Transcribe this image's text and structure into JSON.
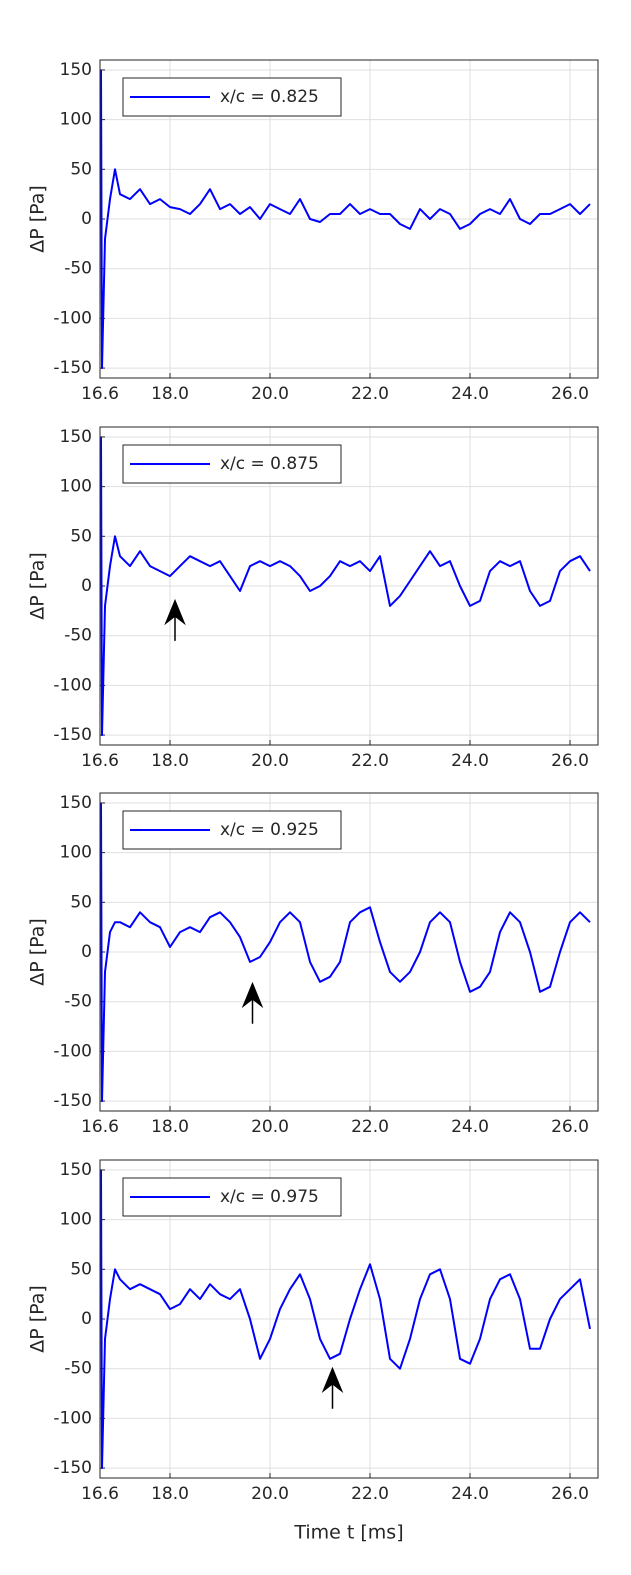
{
  "chart_data": [
    {
      "type": "line",
      "y_label": "ΔP [Pa]",
      "xlim": [
        16.6,
        26.56
      ],
      "ylim": [
        -160,
        160
      ],
      "grid": true,
      "legend": "upper left",
      "xticks": [
        16.6,
        {
          "value": 18,
          "label": "18.0"
        },
        {
          "value": 20,
          "label": "20.0"
        },
        {
          "value": 22,
          "label": "22.0"
        },
        {
          "value": 24,
          "label": "24.0"
        },
        {
          "value": 26,
          "label": "26.0"
        }
      ],
      "yticks": [
        -150,
        -100,
        -50,
        0,
        50,
        100,
        150
      ],
      "x": [
        16.62,
        16.64,
        16.7,
        16.8,
        16.9,
        17,
        17.2,
        17.4,
        17.6,
        17.8,
        18,
        18.2,
        18.4,
        18.6,
        18.8,
        19,
        19.2,
        19.4,
        19.6,
        19.8,
        20,
        20.2,
        20.4,
        20.6,
        20.8,
        21,
        21.2,
        21.4,
        21.6,
        21.8,
        22,
        22.2,
        22.4,
        22.6,
        22.8,
        23,
        23.2,
        23.4,
        23.6,
        23.8,
        24,
        24.2,
        24.4,
        24.6,
        24.8,
        25,
        25.2,
        25.4,
        25.6,
        25.8,
        26,
        26.2,
        26.4
      ],
      "series": [
        {
          "name": "x/c = 0.825",
          "color": "#0000ff",
          "values": [
            150,
            -150,
            -20,
            20,
            50,
            25,
            20,
            30,
            15,
            20,
            12,
            10,
            5,
            15,
            30,
            10,
            15,
            5,
            12,
            0,
            15,
            10,
            5,
            20,
            0,
            -3,
            5,
            5,
            15,
            5,
            10,
            5,
            5,
            -5,
            -10,
            10,
            0,
            10,
            5,
            -10,
            -5,
            5,
            10,
            5,
            20,
            0,
            -5,
            5,
            5,
            10,
            15,
            5,
            15
          ]
        }
      ]
    },
    {
      "type": "line",
      "y_label": "ΔP [Pa]",
      "xlim": [
        16.6,
        26.56
      ],
      "ylim": [
        -160,
        160
      ],
      "grid": true,
      "legend": "upper left",
      "xticks": [
        16.6,
        {
          "value": 18,
          "label": "18.0"
        },
        {
          "value": 20,
          "label": "20.0"
        },
        {
          "value": 22,
          "label": "22.0"
        },
        {
          "value": 24,
          "label": "24.0"
        },
        {
          "value": 26,
          "label": "26.0"
        }
      ],
      "yticks": [
        -150,
        -100,
        -50,
        0,
        50,
        100,
        150
      ],
      "x": [
        16.62,
        16.64,
        16.7,
        16.8,
        16.9,
        17,
        17.2,
        17.4,
        17.6,
        17.8,
        18,
        18.2,
        18.4,
        18.6,
        18.8,
        19,
        19.2,
        19.4,
        19.6,
        19.8,
        20,
        20.2,
        20.4,
        20.6,
        20.8,
        21,
        21.2,
        21.4,
        21.6,
        21.8,
        22,
        22.2,
        22.4,
        22.6,
        22.8,
        23,
        23.2,
        23.4,
        23.6,
        23.8,
        24,
        24.2,
        24.4,
        24.6,
        24.8,
        25,
        25.2,
        25.4,
        25.6,
        25.8,
        26,
        26.2,
        26.4
      ],
      "series": [
        {
          "name": "x/c = 0.875",
          "color": "#0000ff",
          "values": [
            150,
            -150,
            -20,
            20,
            50,
            30,
            20,
            35,
            20,
            15,
            10,
            20,
            30,
            25,
            20,
            25,
            10,
            -5,
            20,
            25,
            20,
            25,
            20,
            10,
            -5,
            0,
            10,
            25,
            20,
            25,
            15,
            30,
            -20,
            -10,
            5,
            20,
            35,
            20,
            25,
            0,
            -20,
            -15,
            15,
            25,
            20,
            25,
            -5,
            -20,
            -15,
            15,
            25,
            30,
            15
          ]
        }
      ],
      "annotations": [
        {
          "x": 18.1,
          "y": -15
        }
      ]
    },
    {
      "type": "line",
      "y_label": "ΔP [Pa]",
      "xlim": [
        16.6,
        26.56
      ],
      "ylim": [
        -160,
        160
      ],
      "grid": true,
      "legend": "upper left",
      "xticks": [
        16.6,
        {
          "value": 18,
          "label": "18.0"
        },
        {
          "value": 20,
          "label": "20.0"
        },
        {
          "value": 22,
          "label": "22.0"
        },
        {
          "value": 24,
          "label": "24.0"
        },
        {
          "value": 26,
          "label": "26.0"
        }
      ],
      "yticks": [
        -150,
        -100,
        -50,
        0,
        50,
        100,
        150
      ],
      "x": [
        16.62,
        16.64,
        16.7,
        16.8,
        16.9,
        17,
        17.2,
        17.4,
        17.6,
        17.8,
        18,
        18.2,
        18.4,
        18.6,
        18.8,
        19,
        19.2,
        19.4,
        19.6,
        19.8,
        20,
        20.2,
        20.4,
        20.6,
        20.8,
        21,
        21.2,
        21.4,
        21.6,
        21.8,
        22,
        22.2,
        22.4,
        22.6,
        22.8,
        23,
        23.2,
        23.4,
        23.6,
        23.8,
        24,
        24.2,
        24.4,
        24.6,
        24.8,
        25,
        25.2,
        25.4,
        25.6,
        25.8,
        26,
        26.2,
        26.4
      ],
      "series": [
        {
          "name": "x/c = 0.925",
          "color": "#0000ff",
          "values": [
            150,
            -150,
            -20,
            20,
            30,
            30,
            25,
            40,
            30,
            25,
            5,
            20,
            25,
            20,
            35,
            40,
            30,
            15,
            -10,
            -5,
            10,
            30,
            40,
            30,
            -10,
            -30,
            -25,
            -10,
            30,
            40,
            45,
            10,
            -20,
            -30,
            -20,
            0,
            30,
            40,
            30,
            -10,
            -40,
            -35,
            -20,
            20,
            40,
            30,
            0,
            -40,
            -35,
            0,
            30,
            40,
            30
          ]
        }
      ],
      "annotations": [
        {
          "x": 19.65,
          "y": -32
        }
      ]
    },
    {
      "type": "line",
      "y_label": "ΔP [Pa]",
      "x_label": "Time t [ms]",
      "xlim": [
        16.6,
        26.56
      ],
      "ylim": [
        -160,
        160
      ],
      "grid": true,
      "legend": "upper left",
      "xticks": [
        16.6,
        {
          "value": 18,
          "label": "18.0"
        },
        {
          "value": 20,
          "label": "20.0"
        },
        {
          "value": 22,
          "label": "22.0"
        },
        {
          "value": 24,
          "label": "24.0"
        },
        {
          "value": 26,
          "label": "26.0"
        }
      ],
      "yticks": [
        -150,
        -100,
        -50,
        0,
        50,
        100,
        150
      ],
      "x": [
        16.62,
        16.64,
        16.7,
        16.8,
        16.9,
        17,
        17.2,
        17.4,
        17.6,
        17.8,
        18,
        18.2,
        18.4,
        18.6,
        18.8,
        19,
        19.2,
        19.4,
        19.6,
        19.8,
        20,
        20.2,
        20.4,
        20.6,
        20.8,
        21,
        21.2,
        21.4,
        21.6,
        21.8,
        22,
        22.2,
        22.4,
        22.6,
        22.8,
        23,
        23.2,
        23.4,
        23.6,
        23.8,
        24,
        24.2,
        24.4,
        24.6,
        24.8,
        25,
        25.2,
        25.4,
        25.6,
        25.8,
        26,
        26.2,
        26.4
      ],
      "series": [
        {
          "name": "x/c = 0.975",
          "color": "#0000ff",
          "values": [
            150,
            -150,
            -20,
            20,
            50,
            40,
            30,
            35,
            30,
            25,
            10,
            15,
            30,
            20,
            35,
            25,
            20,
            30,
            0,
            -40,
            -20,
            10,
            30,
            45,
            20,
            -20,
            -40,
            -35,
            0,
            30,
            55,
            20,
            -40,
            -50,
            -20,
            20,
            45,
            50,
            20,
            -40,
            -45,
            -20,
            20,
            40,
            45,
            20,
            -30,
            -30,
            0,
            20,
            30,
            40,
            -10
          ]
        }
      ],
      "annotations": [
        {
          "x": 21.25,
          "y": -50
        }
      ]
    }
  ]
}
